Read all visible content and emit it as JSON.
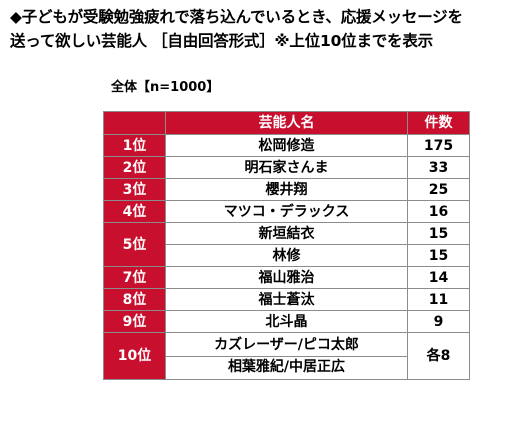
{
  "title_lines": [
    "◆子どもが受験勉強疲れで落ち込んでいるとき、応援メッセージを",
    "送って欲しい芸能人 ［自由回答形式］※上位10位までを表示"
  ],
  "subtitle": "全体【n=1000】",
  "table": {
    "header_rank": "",
    "header_name": "芸能人名",
    "header_count": "件数"
  },
  "chart_data": {
    "type": "table",
    "title": "◆子どもが受験勉強疲れで落ち込んでいるとき、応援メッセージを送って欲しい芸能人 ［自由回答形式］※上位10位までを表示",
    "subtitle": "全体【n=1000】",
    "columns": [
      "",
      "芸能人名",
      "件数"
    ],
    "rows": [
      {
        "rank": "1位",
        "names": [
          "松岡修造"
        ],
        "count": "175",
        "count_value": 175
      },
      {
        "rank": "2位",
        "names": [
          "明石家さんま"
        ],
        "count": "33",
        "count_value": 33
      },
      {
        "rank": "3位",
        "names": [
          "櫻井翔"
        ],
        "count": "25",
        "count_value": 25
      },
      {
        "rank": "4位",
        "names": [
          "マツコ・デラックス"
        ],
        "count": "16",
        "count_value": 16
      },
      {
        "rank": "5位",
        "names": [
          "新垣結衣",
          "林修"
        ],
        "count": "15",
        "count_value": 15,
        "per_name_counts": [
          "15",
          "15"
        ]
      },
      {
        "rank": "7位",
        "names": [
          "福山雅治"
        ],
        "count": "14",
        "count_value": 14
      },
      {
        "rank": "8位",
        "names": [
          "福士蒼汰"
        ],
        "count": "11",
        "count_value": 11
      },
      {
        "rank": "9位",
        "names": [
          "北斗晶"
        ],
        "count": "9",
        "count_value": 9
      },
      {
        "rank": "10位",
        "names": [
          "カズレーザー/ピコ太郎",
          "相葉雅紀/中居正広"
        ],
        "count": "各8",
        "count_value": 8
      }
    ],
    "colors": {
      "header_bg": "#c8102e",
      "rank_bg": "#c8102e",
      "header_text": "#ffffff",
      "border": "#8c8c8c"
    }
  }
}
